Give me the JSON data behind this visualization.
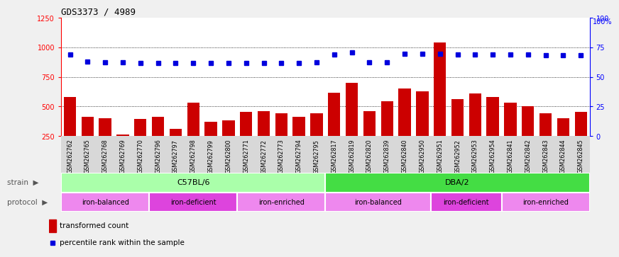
{
  "title": "GDS3373 / 4989",
  "samples": [
    "GSM262762",
    "GSM262765",
    "GSM262768",
    "GSM262769",
    "GSM262770",
    "GSM262796",
    "GSM262797",
    "GSM262798",
    "GSM262799",
    "GSM262800",
    "GSM262771",
    "GSM262772",
    "GSM262773",
    "GSM262794",
    "GSM262795",
    "GSM262817",
    "GSM262819",
    "GSM262820",
    "GSM262839",
    "GSM262840",
    "GSM262950",
    "GSM262951",
    "GSM262952",
    "GSM262953",
    "GSM262954",
    "GSM262841",
    "GSM262842",
    "GSM262843",
    "GSM262844",
    "GSM262845"
  ],
  "bar_values": [
    580,
    410,
    400,
    265,
    395,
    415,
    310,
    530,
    370,
    380,
    455,
    460,
    440,
    415,
    440,
    615,
    700,
    460,
    545,
    650,
    630,
    1040,
    560,
    610,
    580,
    530,
    505,
    440,
    400,
    455
  ],
  "dot_values": [
    940,
    880,
    875,
    875,
    865,
    870,
    870,
    870,
    870,
    870,
    870,
    870,
    870,
    870,
    875,
    940,
    960,
    875,
    875,
    945,
    945,
    945,
    940,
    940,
    940,
    940,
    940,
    935,
    935,
    935
  ],
  "bar_color": "#cc0000",
  "dot_color": "#0000dd",
  "ylim_left": [
    250,
    1250
  ],
  "ylim_right": [
    0,
    100
  ],
  "yticks_left": [
    250,
    500,
    750,
    1000,
    1250
  ],
  "yticks_right": [
    0,
    25,
    50,
    75,
    100
  ],
  "grid_values": [
    500,
    750,
    1000
  ],
  "strain_groups": [
    {
      "label": "C57BL/6",
      "start": 0,
      "end": 15,
      "color": "#aaffaa"
    },
    {
      "label": "DBA/2",
      "start": 15,
      "end": 30,
      "color": "#44dd44"
    }
  ],
  "protocol_groups": [
    {
      "label": "iron-balanced",
      "start": 0,
      "end": 5,
      "color": "#ee88ee"
    },
    {
      "label": "iron-deficient",
      "start": 5,
      "end": 10,
      "color": "#dd44dd"
    },
    {
      "label": "iron-enriched",
      "start": 10,
      "end": 15,
      "color": "#ee88ee"
    },
    {
      "label": "iron-balanced",
      "start": 15,
      "end": 21,
      "color": "#ee88ee"
    },
    {
      "label": "iron-deficient",
      "start": 21,
      "end": 25,
      "color": "#dd44dd"
    },
    {
      "label": "iron-enriched",
      "start": 25,
      "end": 30,
      "color": "#ee88ee"
    }
  ],
  "legend_bar_label": "transformed count",
  "legend_dot_label": "percentile rank within the sample",
  "strain_label": "strain",
  "protocol_label": "protocol",
  "tick_bg_color": "#d8d8d8",
  "fig_bg_color": "#f0f0f0",
  "plot_bg": "#ffffff"
}
